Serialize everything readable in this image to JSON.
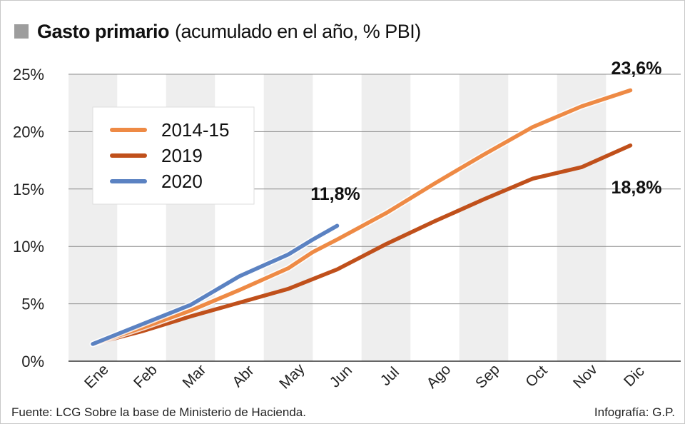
{
  "title": {
    "main": "Gasto primario",
    "sub": "(acumulado en el año, % PBI)"
  },
  "colors": {
    "series_2014": "#ee8a45",
    "series_2019": "#c0501b",
    "series_2020": "#5b82c2",
    "stripe": "#eeeeee",
    "grid": "#8c8c8c",
    "title_square": "#9d9d9d"
  },
  "chart_data": {
    "type": "line",
    "title": "Gasto primario (acumulado en el año, % PBI)",
    "xlabel": "",
    "ylabel": "",
    "categories": [
      "Ene",
      "Feb",
      "Mar",
      "Abr",
      "May",
      "Jun",
      "Jul",
      "Ago",
      "Sep",
      "Oct",
      "Nov",
      "Dic"
    ],
    "ylim": [
      0,
      25
    ],
    "yticks": [
      "0%",
      "5%",
      "10%",
      "15%",
      "20%",
      "25%"
    ],
    "series": [
      {
        "name": "2014-15",
        "color_key": "series_2014",
        "x": [
          0,
          1,
          2,
          3,
          4,
          4.5,
          5,
          6,
          7,
          8,
          9,
          10,
          11
        ],
        "values": [
          1.5,
          2.9,
          4.4,
          6.2,
          8.1,
          9.5,
          10.6,
          12.9,
          15.5,
          18.0,
          20.4,
          22.2,
          23.6
        ]
      },
      {
        "name": "2019",
        "color_key": "series_2019",
        "x": [
          0,
          1,
          2,
          3,
          4,
          5,
          6,
          7,
          8,
          9,
          10,
          11
        ],
        "values": [
          1.5,
          2.6,
          3.9,
          5.1,
          6.3,
          8.0,
          10.2,
          12.2,
          14.1,
          15.9,
          16.9,
          18.8
        ]
      },
      {
        "name": "2020",
        "color_key": "series_2020",
        "x": [
          0,
          1,
          2,
          3,
          4,
          4.5,
          5
        ],
        "values": [
          1.5,
          3.2,
          4.9,
          7.4,
          9.3,
          10.6,
          11.8
        ]
      }
    ],
    "annotations": [
      {
        "text": "11,8%",
        "series": "2020"
      },
      {
        "text": "23,6%",
        "series": "2014-15"
      },
      {
        "text": "18,8%",
        "series": "2019"
      }
    ],
    "legend": {
      "position": "upper-left",
      "items": [
        "2014-15",
        "2019",
        "2020"
      ]
    }
  },
  "footer": {
    "source": "Fuente: LCG Sobre la base de Ministerio de Hacienda.",
    "credit": "Infografía: G.P."
  }
}
